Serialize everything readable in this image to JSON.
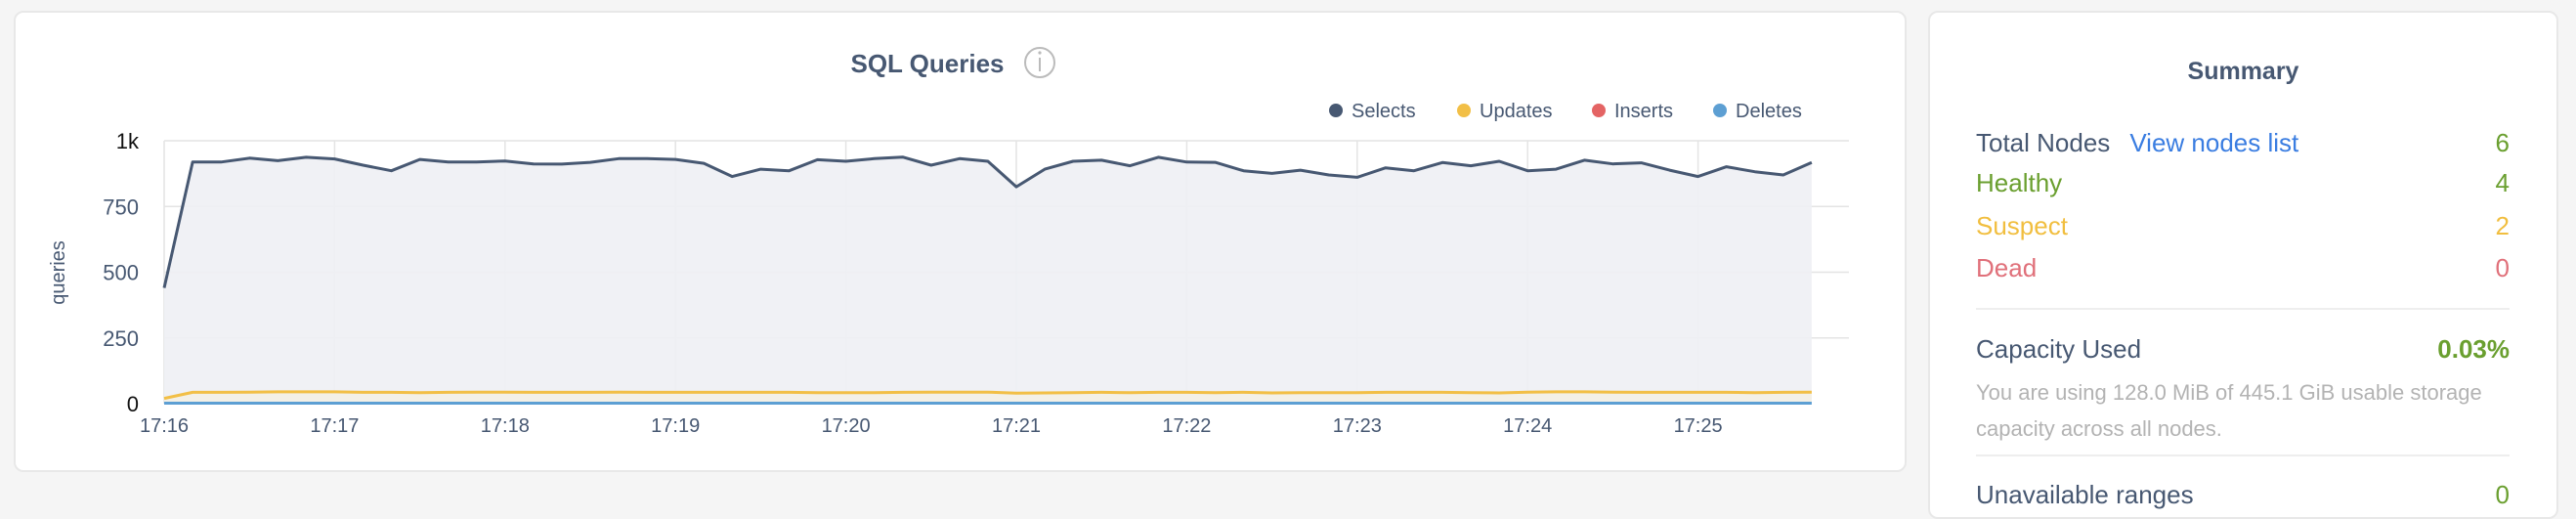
{
  "chart": {
    "title": "SQL Queries",
    "info_icon": "info-circle-icon",
    "chart_data": {
      "type": "area",
      "title": "SQL Queries",
      "ylabel": "queries",
      "xlabel": "",
      "ylim": [
        0,
        1000
      ],
      "yticks": [
        "0",
        "250",
        "500",
        "750",
        "1k"
      ],
      "ytick_values": [
        0,
        250,
        500,
        750,
        1000
      ],
      "xticks": [
        "17:16",
        "17:17",
        "17:18",
        "17:19",
        "17:20",
        "17:21",
        "17:22",
        "17:23",
        "17:24",
        "17:25"
      ],
      "x_start": "17:16:00",
      "x_end": "17:25:40",
      "x_step_seconds": 10,
      "grid": true,
      "legend_placement": "top-right",
      "series": [
        {
          "name": "Selects",
          "color": "#475872",
          "fill": "#eef0f4",
          "values": [
            440,
            919,
            919,
            934,
            924,
            937,
            931,
            907,
            886,
            929,
            919,
            919,
            923,
            912,
            911,
            918,
            932,
            932,
            929,
            914,
            864,
            892,
            886,
            928,
            922,
            932,
            938,
            907,
            932,
            922,
            825,
            892,
            922,
            926,
            905,
            937,
            919,
            918,
            886,
            876,
            888,
            870,
            861,
            897,
            886,
            917,
            905,
            922,
            886,
            892,
            926,
            912,
            916,
            888,
            864,
            901,
            882,
            870,
            917
          ]
        },
        {
          "name": "Updates",
          "color": "#f2bf46",
          "fill": "#f3efe6",
          "values": [
            20,
            43,
            43,
            44,
            45,
            45,
            45,
            43,
            43,
            42,
            43,
            44,
            44,
            43,
            43,
            43,
            44,
            43,
            43,
            43,
            43,
            43,
            43,
            42,
            42,
            42,
            43,
            44,
            44,
            44,
            40,
            41,
            42,
            43,
            42,
            43,
            43,
            42,
            43,
            41,
            42,
            42,
            42,
            43,
            43,
            43,
            42,
            41,
            44,
            45,
            45,
            44,
            43,
            43,
            43,
            43,
            42,
            43,
            44
          ]
        },
        {
          "name": "Inserts",
          "color": "#e46464",
          "values": []
        },
        {
          "name": "Deletes",
          "color": "#5d9fd3",
          "values": [
            2,
            2,
            2,
            2,
            2,
            2,
            2,
            2,
            2,
            2,
            2,
            2,
            2,
            2,
            2,
            2,
            2,
            2,
            2,
            2,
            2,
            2,
            2,
            2,
            2,
            2,
            2,
            2,
            2,
            2,
            2,
            2,
            2,
            2,
            2,
            2,
            2,
            2,
            2,
            2,
            2,
            2,
            2,
            2,
            2,
            2,
            2,
            2,
            2,
            2,
            2,
            2,
            2,
            2,
            2,
            2,
            2,
            2,
            2
          ]
        }
      ]
    }
  },
  "summary": {
    "title": "Summary",
    "total_nodes_label": "Total Nodes",
    "view_nodes_link": "View nodes list",
    "total_nodes_value": "6",
    "healthy_label": "Healthy",
    "healthy_value": "4",
    "suspect_label": "Suspect",
    "suspect_value": "2",
    "dead_label": "Dead",
    "dead_value": "0",
    "capacity_label": "Capacity Used",
    "capacity_value": "0.03%",
    "capacity_desc": "You are using 128.0 MiB of 445.1 GiB usable storage capacity across all nodes.",
    "next_label": "Unavailable ranges",
    "next_value": "0",
    "colors": {
      "green": "#6a9f2f",
      "yellow": "#f1be3f",
      "red": "#e0707a",
      "text": "#475872",
      "link": "#3a7de1"
    }
  }
}
